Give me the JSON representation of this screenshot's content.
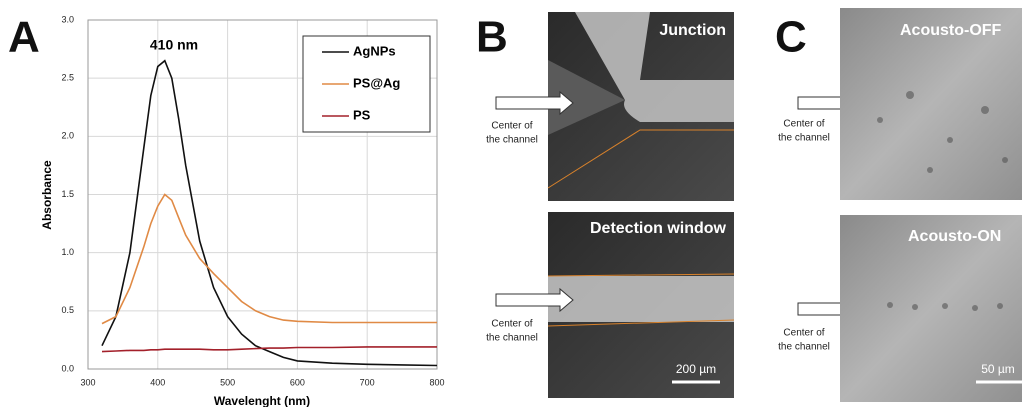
{
  "chart_data": {
    "type": "line",
    "panel_label": "A",
    "annotation": "410 nm",
    "x_label": "Wavelenght (nm)",
    "y_label": "Absorbance",
    "x": [
      320,
      340,
      360,
      380,
      390,
      400,
      410,
      420,
      430,
      440,
      460,
      480,
      500,
      520,
      540,
      560,
      580,
      600,
      650,
      700,
      750,
      800
    ],
    "series": [
      {
        "name": "AgNPs",
        "color": "#111111",
        "values": [
          0.2,
          0.45,
          1.0,
          1.9,
          2.35,
          2.6,
          2.65,
          2.5,
          2.15,
          1.75,
          1.1,
          0.7,
          0.45,
          0.3,
          0.2,
          0.15,
          0.1,
          0.07,
          0.05,
          0.04,
          0.035,
          0.03
        ]
      },
      {
        "name": "PS@Ag",
        "color": "#e08a45",
        "values": [
          0.39,
          0.45,
          0.7,
          1.05,
          1.25,
          1.4,
          1.5,
          1.45,
          1.3,
          1.15,
          0.95,
          0.82,
          0.7,
          0.58,
          0.5,
          0.45,
          0.42,
          0.41,
          0.4,
          0.4,
          0.4,
          0.4
        ]
      },
      {
        "name": "PS",
        "color": "#a3202a",
        "values": [
          0.15,
          0.155,
          0.16,
          0.16,
          0.165,
          0.165,
          0.17,
          0.17,
          0.17,
          0.17,
          0.17,
          0.165,
          0.165,
          0.17,
          0.175,
          0.18,
          0.18,
          0.185,
          0.185,
          0.19,
          0.19,
          0.19
        ]
      }
    ],
    "xlim": [
      300,
      800
    ],
    "xticks": [
      300,
      400,
      500,
      600,
      700,
      800
    ],
    "ylim": [
      0,
      3
    ],
    "yticks": [
      {
        "value": 0,
        "label": "0.0"
      },
      0.5,
      {
        "value": 1,
        "label": "1.0"
      },
      1.5,
      {
        "value": 2,
        "label": "2.0"
      },
      2.5,
      {
        "value": 3,
        "label": "3.0"
      }
    ],
    "grid": true,
    "legend": "top-right"
  },
  "panels": {
    "b": {
      "label": "B",
      "top_title": "Junction",
      "bottom_title": "Detection window",
      "pointer_1": "Center of",
      "pointer_2": "the channel",
      "scale": "200 µm"
    },
    "c": {
      "label": "C",
      "top_title": "Acousto-OFF",
      "bottom_title": "Acousto-ON",
      "pointer_1": "Center of",
      "pointer_2": "the channel",
      "scale": "50 µm"
    }
  }
}
